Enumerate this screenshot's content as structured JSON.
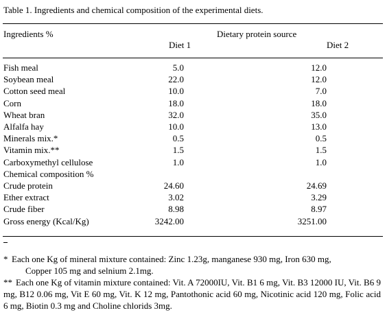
{
  "caption": "Table 1. Ingredients and chemical composition of the experimental diets.",
  "header": {
    "stub": "Ingredients %",
    "group": "Dietary protein source",
    "col1": "Diet 1",
    "col2": "Diet 2"
  },
  "rows": [
    {
      "label": "Fish meal",
      "diet1": "5.0",
      "diet2": "12.0"
    },
    {
      "label": "Soybean meal",
      "diet1": "22.0",
      "diet2": "12.0"
    },
    {
      "label": "Cotton seed meal",
      "diet1": "10.0",
      "diet2": "7.0"
    },
    {
      "label": "Corn",
      "diet1": "18.0",
      "diet2": "18.0"
    },
    {
      "label": "Wheat bran",
      "diet1": "32.0",
      "diet2": "35.0"
    },
    {
      "label": "Alfalfa hay",
      "diet1": "10.0",
      "diet2": "13.0"
    },
    {
      "label": "Minerals mix.*",
      "diet1": "0.5",
      "diet2": "0.5"
    },
    {
      "label": "Vitamin mix.**",
      "diet1": "1.5",
      "diet2": "1.5"
    },
    {
      "label": "Carboxymethyl cellulose",
      "diet1": "1.0",
      "diet2": "1.0"
    },
    {
      "label": "Chemical composition %",
      "diet1": "",
      "diet2": ""
    },
    {
      "label": "Crude protein",
      "diet1": "24.60",
      "diet2": "24.69"
    },
    {
      "label": "Ether extract",
      "diet1": "3.02",
      "diet2": "3.29"
    },
    {
      "label": "Crude fiber",
      "diet1": "8.98",
      "diet2": "8.97"
    },
    {
      "label": "Gross energy (Kcal/Kg)",
      "diet1": "3242.00",
      "diet2": "3251.00"
    }
  ],
  "footnotes": {
    "fn1_mark": "*",
    "fn1_line1": "Each one Kg of mineral mixture contained: Zinc 1.23g, manganese 930 mg, Iron 630 mg,",
    "fn1_line2": "Copper 105 mg and selnium 2.1mg.",
    "fn2_mark": "**",
    "fn2_text": "Each one Kg of vitamin mixture contained: Vit. A 72000IU, Vit. B1 6 mg, Vit. B3 12000 IU, Vit. B6 9 mg, B12 0.06 mg, Vit E 60 mg, Vit. K 12 mg, Pantothonic acid 60 mg, Nicotinic acid 120 mg, Folic acid 6 mg, Biotin 0.3 mg and Choline chlorids 3mg."
  }
}
